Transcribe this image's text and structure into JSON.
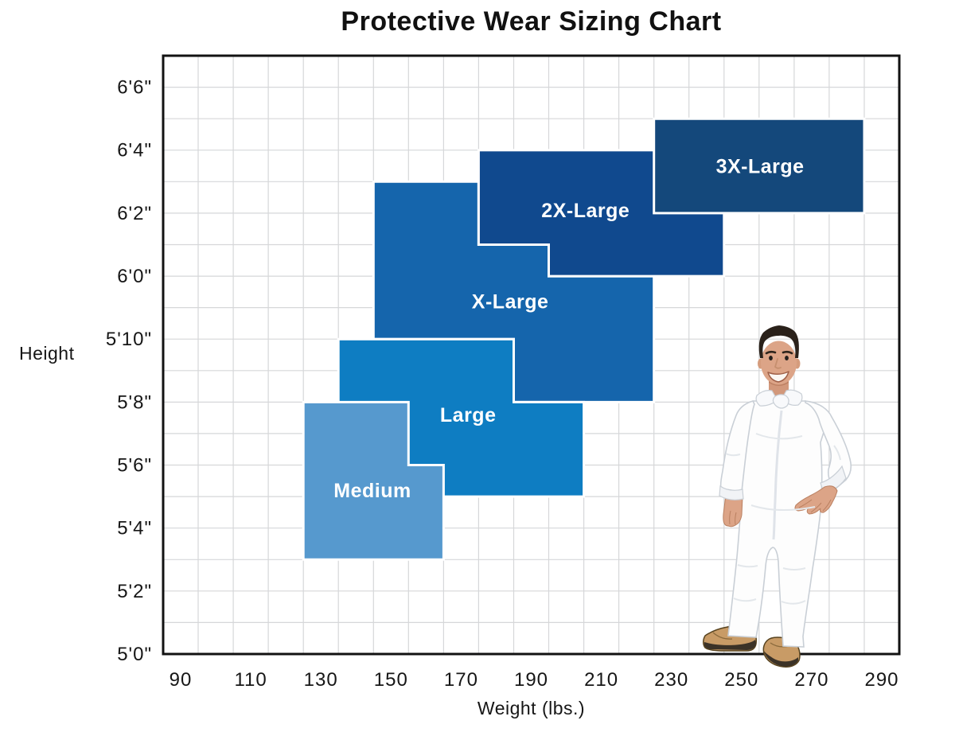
{
  "title": "Protective Wear Sizing Chart",
  "chart_data": {
    "type": "area",
    "title": "Protective Wear Sizing Chart",
    "xlabel": "Weight (lbs.)",
    "ylabel": "Height",
    "x_range_lbs": [
      85,
      295
    ],
    "x_ticks_lbs": [
      90,
      110,
      130,
      150,
      170,
      190,
      210,
      230,
      250,
      270,
      290
    ],
    "x_grid_start_lbs": 95,
    "x_grid_step_lbs": 10,
    "y_range_inches": [
      60,
      79
    ],
    "y_grid_step_inches": 1,
    "y_ticks": [
      {
        "inches": 60,
        "label": "5'0\""
      },
      {
        "inches": 62,
        "label": "5'2\""
      },
      {
        "inches": 64,
        "label": "5'4\""
      },
      {
        "inches": 66,
        "label": "5'6\""
      },
      {
        "inches": 68,
        "label": "5'8\""
      },
      {
        "inches": 70,
        "label": "5'10\""
      },
      {
        "inches": 72,
        "label": "6'0\""
      },
      {
        "inches": 74,
        "label": "6'2\""
      },
      {
        "inches": 76,
        "label": "6'4\""
      },
      {
        "inches": 78,
        "label": "6'6\""
      }
    ],
    "grid_color": "#d6d7d9",
    "axis_color": "#121212",
    "region_border_color": "#ffffff",
    "legend_position": "labels-inside-regions",
    "regions": [
      {
        "name": "Medium",
        "z": 5,
        "color": "#5699CE",
        "weight_range_lbs": [
          125,
          165
        ],
        "height_range": [
          "5'3\"",
          "5'8\""
        ],
        "polygon_w_h": [
          [
            125,
            68
          ],
          [
            155,
            68
          ],
          [
            155,
            66
          ],
          [
            165,
            66
          ],
          [
            165,
            63
          ],
          [
            125,
            63
          ]
        ],
        "label_at": [
          144.7,
          65.2
        ]
      },
      {
        "name": "Large",
        "z": 4,
        "color": "#0E7DC2",
        "weight_range_lbs": [
          135,
          205
        ],
        "height_range": [
          "5'5\"",
          "5'10\""
        ],
        "polygon_w_h": [
          [
            135,
            70
          ],
          [
            185,
            70
          ],
          [
            185,
            68
          ],
          [
            205,
            68
          ],
          [
            205,
            65
          ],
          [
            135,
            65
          ]
        ],
        "label_at": [
          172,
          67.6
        ]
      },
      {
        "name": "X-Large",
        "z": 1,
        "color": "#1565AC",
        "weight_range_lbs": [
          145,
          225
        ],
        "height_range": [
          "5'8\"",
          "6'3\""
        ],
        "polygon_w_h": [
          [
            145,
            75
          ],
          [
            175,
            75
          ],
          [
            175,
            73
          ],
          [
            195,
            73
          ],
          [
            195,
            72
          ],
          [
            225,
            72
          ],
          [
            225,
            68
          ],
          [
            185,
            68
          ],
          [
            185,
            70
          ],
          [
            145,
            70
          ]
        ],
        "label_at": [
          184,
          71.2
        ]
      },
      {
        "name": "2X-Large",
        "z": 2,
        "color": "#10498E",
        "weight_range_lbs": [
          175,
          245
        ],
        "height_range": [
          "6'0\"",
          "6'4\""
        ],
        "polygon_w_h": [
          [
            175,
            76
          ],
          [
            245,
            76
          ],
          [
            245,
            72
          ],
          [
            195,
            72
          ],
          [
            195,
            73
          ],
          [
            175,
            73
          ]
        ],
        "label_at": [
          205.5,
          74.1
        ]
      },
      {
        "name": "3X-Large",
        "z": 3,
        "color": "#14487B",
        "weight_range_lbs": [
          225,
          285
        ],
        "height_range": [
          "6'2\"",
          "6'5\""
        ],
        "polygon_w_h": [
          [
            225,
            77
          ],
          [
            285,
            77
          ],
          [
            285,
            74
          ],
          [
            225,
            74
          ]
        ],
        "label_at": [
          255.3,
          75.5
        ]
      }
    ],
    "photo": {
      "subject": "Man wearing white protective coveralls and tan work boots, one hand on hip",
      "suit_color": "#FDFDFD",
      "boot_color": "#C89B66",
      "hair_color": "#2A211A",
      "skin_color": "#DCA487"
    }
  }
}
